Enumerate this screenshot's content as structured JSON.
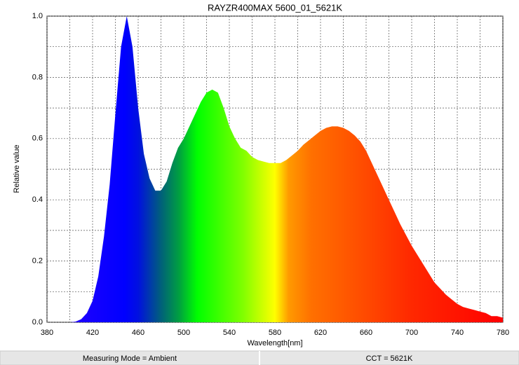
{
  "chart_data": {
    "type": "area",
    "title": "RAYZR400MAX 5600_01_5621K",
    "x_label": "Wavelength[nm]",
    "y_label": "Relative value",
    "x": [
      380,
      385,
      390,
      395,
      400,
      405,
      410,
      415,
      420,
      425,
      430,
      435,
      440,
      445,
      450,
      455,
      460,
      465,
      470,
      475,
      480,
      485,
      490,
      495,
      500,
      505,
      510,
      515,
      520,
      525,
      530,
      535,
      540,
      545,
      550,
      555,
      560,
      565,
      570,
      575,
      580,
      585,
      590,
      595,
      600,
      605,
      610,
      615,
      620,
      625,
      630,
      635,
      640,
      645,
      650,
      655,
      660,
      665,
      670,
      675,
      680,
      685,
      690,
      695,
      700,
      705,
      710,
      715,
      720,
      725,
      730,
      735,
      740,
      745,
      750,
      755,
      760,
      765,
      770,
      775,
      780
    ],
    "values": [
      0,
      0,
      0,
      0,
      0,
      0.002,
      0.01,
      0.03,
      0.07,
      0.15,
      0.28,
      0.45,
      0.68,
      0.9,
      1.0,
      0.9,
      0.7,
      0.55,
      0.47,
      0.43,
      0.43,
      0.46,
      0.52,
      0.57,
      0.6,
      0.64,
      0.68,
      0.72,
      0.75,
      0.76,
      0.75,
      0.7,
      0.64,
      0.6,
      0.57,
      0.56,
      0.54,
      0.53,
      0.525,
      0.52,
      0.52,
      0.52,
      0.53,
      0.545,
      0.56,
      0.58,
      0.595,
      0.61,
      0.625,
      0.635,
      0.64,
      0.64,
      0.635,
      0.625,
      0.61,
      0.59,
      0.56,
      0.52,
      0.48,
      0.44,
      0.4,
      0.36,
      0.32,
      0.285,
      0.25,
      0.22,
      0.19,
      0.16,
      0.13,
      0.11,
      0.09,
      0.075,
      0.06,
      0.05,
      0.045,
      0.04,
      0.035,
      0.03,
      0.02,
      0.02,
      0.015
    ],
    "xlim": [
      380,
      780
    ],
    "ylim": [
      0,
      1
    ],
    "xticks": [
      380,
      420,
      460,
      500,
      540,
      580,
      620,
      660,
      700,
      740,
      780
    ],
    "xminorticks": [
      400,
      440,
      480,
      520,
      560,
      600,
      640,
      680,
      720,
      760
    ],
    "yticks": [
      {
        "value": 0,
        "label": "0.0"
      },
      0.2,
      0.4,
      0.6,
      0.8,
      {
        "value": 1,
        "label": "1.0"
      }
    ],
    "yminorticks": [
      0.1,
      0.3,
      0.5,
      0.7,
      0.9
    ],
    "grid": true,
    "status": [
      "Measuring Mode = Ambient",
      "CCT = 5621K"
    ]
  }
}
